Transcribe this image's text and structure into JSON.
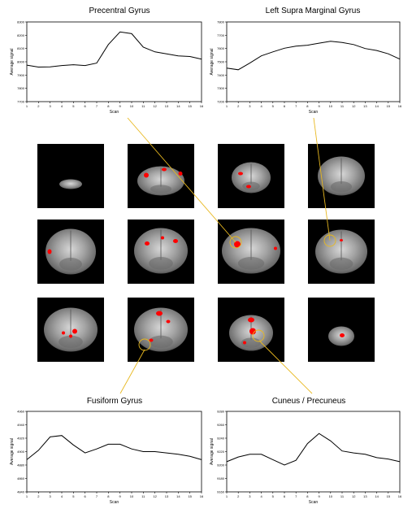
{
  "colors": {
    "callout": "#e8b820",
    "activation": "#ff0000",
    "brain_bg": "#000000"
  },
  "plots": {
    "precentral": {
      "title": "Precentral Gyrus",
      "xlabel": "Scan",
      "ylabel": "Average signal",
      "x_ticks": [
        "1",
        "2",
        "3",
        "4",
        "5",
        "6",
        "7",
        "8",
        "9",
        "10",
        "11",
        "12",
        "13",
        "14",
        "15",
        "16"
      ],
      "y_ticks": [
        "8300",
        "8200",
        "8100",
        "8000",
        "7900",
        "7800",
        "7700"
      ],
      "ylim": [
        7700,
        8300
      ],
      "values": [
        7975,
        7960,
        7962,
        7972,
        7978,
        7972,
        7990,
        8130,
        8225,
        8212,
        8110,
        8075,
        8060,
        8045,
        8040,
        8020
      ]
    },
    "supramarginal": {
      "title": "Left Supra Marginal Gyrus",
      "xlabel": "Scan",
      "ylabel": "Average signal",
      "x_ticks": [
        "1",
        "2",
        "3",
        "4",
        "5",
        "6",
        "7",
        "8",
        "9",
        "10",
        "11",
        "12",
        "13",
        "14",
        "15",
        "16"
      ],
      "y_ticks": [
        "7800",
        "7700",
        "7600",
        "7500",
        "7400",
        "7300",
        "7200"
      ],
      "ylim": [
        7200,
        7800
      ],
      "values": [
        7452,
        7440,
        7490,
        7545,
        7575,
        7602,
        7618,
        7625,
        7640,
        7655,
        7645,
        7630,
        7600,
        7585,
        7560,
        7520
      ]
    },
    "fusiform": {
      "title": "Fusiform Gyrus",
      "xlabel": "Scan",
      "ylabel": "Average signal",
      "x_ticks": [
        "1",
        "2",
        "3",
        "4",
        "5",
        "6",
        "7",
        "8",
        "9",
        "10",
        "11",
        "12",
        "13",
        "14",
        "15",
        "16"
      ],
      "y_ticks": [
        "4960",
        "4940",
        "4920",
        "4900",
        "4880",
        "4860",
        "4840"
      ],
      "ylim": [
        4840,
        4960
      ],
      "values": [
        4888,
        4902,
        4922,
        4924,
        4910,
        4898,
        4904,
        4911,
        4911,
        4904,
        4900,
        4900,
        4898,
        4896,
        4893,
        4888
      ]
    },
    "cuneus": {
      "title": "Cuneus / Precuneus",
      "xlabel": "Scan",
      "ylabel": "Average signal",
      "x_ticks": [
        "1",
        "2",
        "3",
        "4",
        "5",
        "6",
        "7",
        "8",
        "9",
        "10",
        "11",
        "12",
        "13",
        "14",
        "15",
        "16"
      ],
      "y_ticks": [
        "9280",
        "9260",
        "9240",
        "9220",
        "9200",
        "9180",
        "9160"
      ],
      "ylim": [
        9160,
        9280
      ],
      "values": [
        9205,
        9212,
        9216,
        9216,
        9208,
        9200,
        9207,
        9232,
        9247,
        9236,
        9221,
        9218,
        9216,
        9211,
        9209,
        9205
      ]
    }
  }
}
